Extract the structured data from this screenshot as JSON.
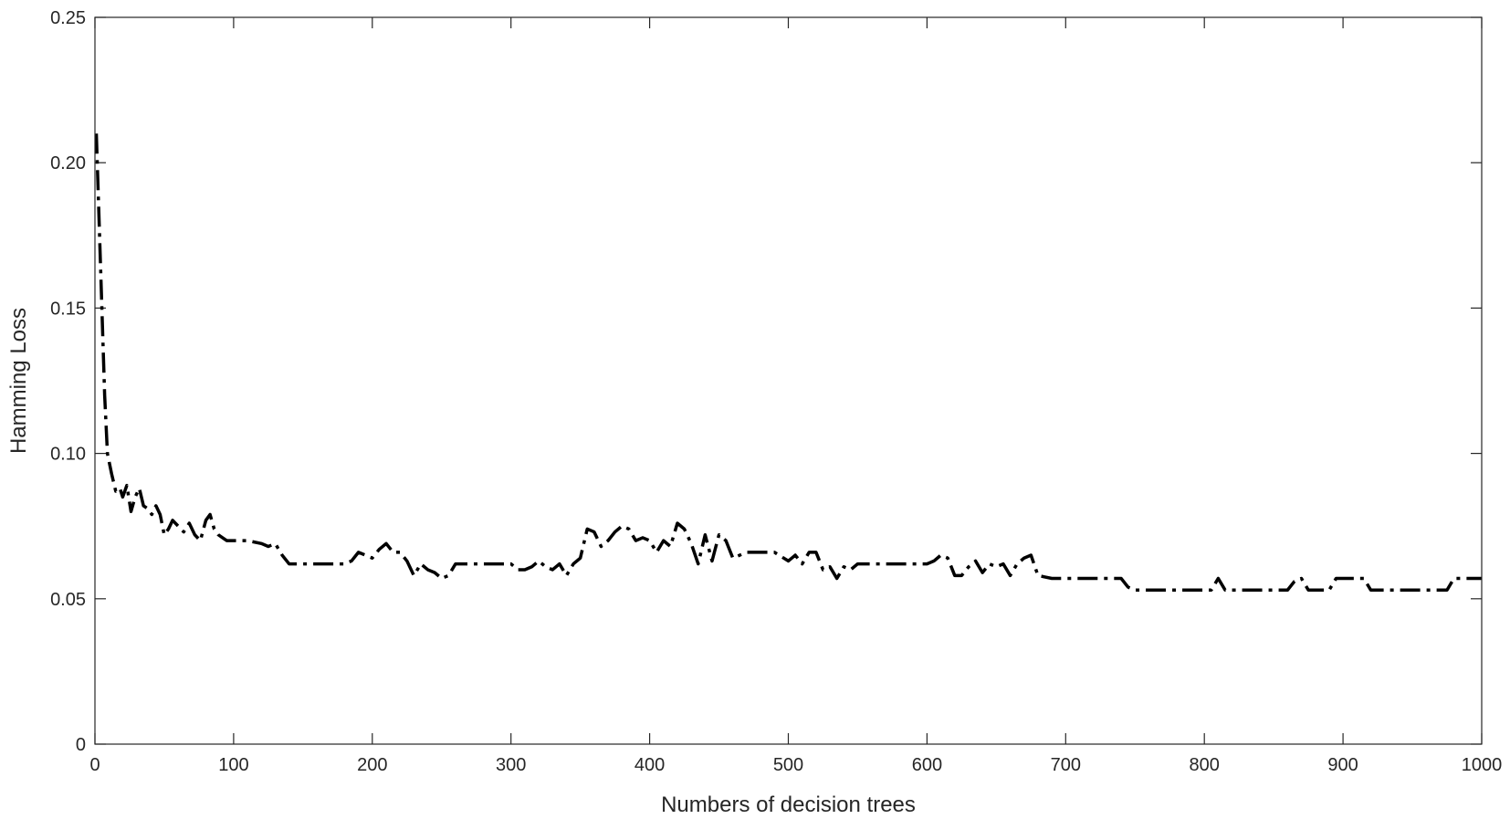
{
  "chart_data": {
    "type": "line",
    "title": "",
    "xlabel": "Numbers of decision trees",
    "ylabel": "Hamming Loss",
    "xlim": [
      0,
      1000
    ],
    "ylim": [
      0,
      0.25
    ],
    "grid": false,
    "x_ticks": [
      "0",
      "100",
      "200",
      "300",
      "400",
      "500",
      "600",
      "700",
      "800",
      "900",
      "1000"
    ],
    "y_ticks": [
      "0",
      "0.05",
      "0.10",
      "0.15",
      "0.20",
      "0.25"
    ],
    "line_style": "dash-dot",
    "line_color": "#000000",
    "series": [
      {
        "x": [
          1,
          3,
          5,
          7,
          9,
          12,
          15,
          18,
          20,
          23,
          26,
          29,
          32,
          35,
          38,
          41,
          44,
          47,
          50,
          53,
          56,
          60,
          64,
          68,
          72,
          76,
          80,
          83,
          86,
          89,
          92,
          95,
          100,
          110,
          120,
          125,
          130,
          135,
          140,
          150,
          160,
          170,
          180,
          185,
          190,
          195,
          200,
          205,
          210,
          215,
          220,
          225,
          230,
          235,
          240,
          245,
          250,
          255,
          260,
          270,
          280,
          290,
          300,
          305,
          310,
          315,
          320,
          325,
          330,
          335,
          340,
          345,
          350,
          355,
          360,
          365,
          370,
          375,
          380,
          385,
          390,
          395,
          400,
          405,
          410,
          415,
          420,
          425,
          430,
          435,
          440,
          445,
          450,
          455,
          460,
          470,
          480,
          490,
          500,
          505,
          510,
          515,
          520,
          525,
          530,
          535,
          540,
          545,
          550,
          560,
          570,
          580,
          590,
          600,
          605,
          610,
          615,
          620,
          625,
          630,
          635,
          640,
          645,
          650,
          655,
          660,
          665,
          670,
          675,
          680,
          690,
          700,
          710,
          720,
          730,
          740,
          745,
          750,
          760,
          770,
          780,
          790,
          800,
          805,
          810,
          815,
          820,
          830,
          840,
          850,
          860,
          865,
          870,
          875,
          880,
          885,
          890,
          895,
          900,
          910,
          915,
          920,
          930,
          940,
          950,
          960,
          970,
          975,
          980,
          990,
          1000
        ],
        "values": [
          0.21,
          0.18,
          0.15,
          0.12,
          0.1,
          0.093,
          0.087,
          0.088,
          0.085,
          0.089,
          0.08,
          0.085,
          0.088,
          0.082,
          0.081,
          0.079,
          0.082,
          0.079,
          0.072,
          0.074,
          0.077,
          0.075,
          0.073,
          0.076,
          0.072,
          0.07,
          0.077,
          0.079,
          0.074,
          0.072,
          0.071,
          0.07,
          0.07,
          0.07,
          0.069,
          0.068,
          0.069,
          0.065,
          0.062,
          0.062,
          0.062,
          0.062,
          0.062,
          0.063,
          0.066,
          0.065,
          0.064,
          0.067,
          0.069,
          0.066,
          0.066,
          0.063,
          0.058,
          0.062,
          0.06,
          0.059,
          0.057,
          0.058,
          0.062,
          0.062,
          0.062,
          0.062,
          0.062,
          0.06,
          0.06,
          0.061,
          0.063,
          0.061,
          0.06,
          0.062,
          0.058,
          0.062,
          0.064,
          0.074,
          0.073,
          0.068,
          0.07,
          0.073,
          0.075,
          0.074,
          0.07,
          0.071,
          0.07,
          0.066,
          0.07,
          0.068,
          0.076,
          0.074,
          0.069,
          0.062,
          0.072,
          0.063,
          0.072,
          0.07,
          0.064,
          0.066,
          0.066,
          0.066,
          0.063,
          0.065,
          0.062,
          0.066,
          0.066,
          0.06,
          0.061,
          0.057,
          0.061,
          0.06,
          0.062,
          0.062,
          0.062,
          0.062,
          0.062,
          0.062,
          0.063,
          0.065,
          0.064,
          0.058,
          0.058,
          0.061,
          0.063,
          0.059,
          0.062,
          0.061,
          0.062,
          0.058,
          0.062,
          0.064,
          0.065,
          0.058,
          0.057,
          0.057,
          0.057,
          0.057,
          0.057,
          0.057,
          0.054,
          0.053,
          0.053,
          0.053,
          0.053,
          0.053,
          0.053,
          0.053,
          0.057,
          0.053,
          0.053,
          0.053,
          0.053,
          0.053,
          0.053,
          0.056,
          0.057,
          0.053,
          0.053,
          0.053,
          0.053,
          0.057,
          0.057,
          0.057,
          0.057,
          0.053,
          0.053,
          0.053,
          0.053,
          0.053,
          0.053,
          0.053,
          0.057,
          0.057,
          0.057
        ]
      }
    ]
  }
}
